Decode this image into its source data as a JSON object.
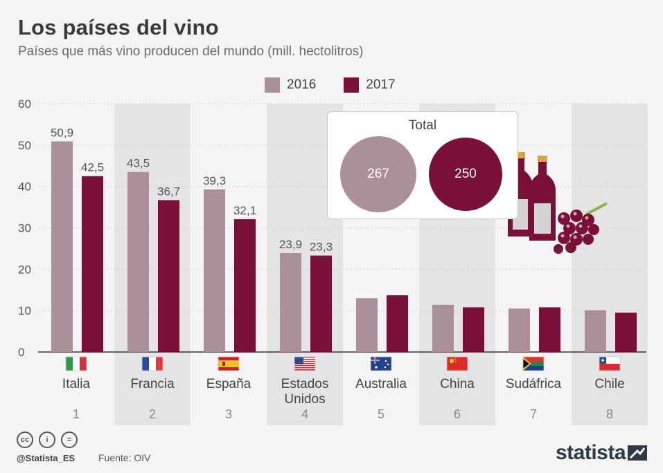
{
  "title": "Los países del vino",
  "subtitle": "Países que más vino producen del mundo (mill. hectolitros)",
  "legend": [
    {
      "label": "2016",
      "color": "#ab909a"
    },
    {
      "label": "2017",
      "color": "#7a0f37"
    }
  ],
  "chart_data": {
    "type": "bar",
    "title": "Los países del vino",
    "subtitle": "Países que más vino producen del mundo (mill. hectolitros)",
    "categories": [
      "Italia",
      "Francia",
      "España",
      "Estados Unidos",
      "Australia",
      "China",
      "Sudáfrica",
      "Chile"
    ],
    "category_lines": [
      [
        "Italia"
      ],
      [
        "Francia"
      ],
      [
        "España"
      ],
      [
        "Estados",
        "Unidos"
      ],
      [
        "Australia"
      ],
      [
        "China"
      ],
      [
        "Sudáfrica"
      ],
      [
        "Chile"
      ]
    ],
    "ranks": [
      "1",
      "2",
      "3",
      "4",
      "5",
      "6",
      "7",
      "8"
    ],
    "flags": [
      "italy-flag",
      "france-flag",
      "spain-flag",
      "usa-flag",
      "australia-flag",
      "china-flag",
      "south-africa-flag",
      "chile-flag"
    ],
    "series": [
      {
        "name": "2016",
        "color": "#ab909a",
        "values": [
          50.9,
          43.5,
          39.3,
          23.9,
          13.0,
          11.4,
          10.5,
          10.1
        ],
        "labels": [
          "50,9",
          "43,5",
          "39,3",
          "23,9",
          null,
          null,
          null,
          null
        ]
      },
      {
        "name": "2017",
        "color": "#7a0f37",
        "values": [
          42.5,
          36.7,
          32.1,
          23.3,
          13.7,
          10.8,
          10.8,
          9.5
        ],
        "labels": [
          "42,5",
          "36,7",
          "32,1",
          "23,3",
          null,
          null,
          null,
          null
        ]
      }
    ],
    "y_ticks": [
      0,
      10,
      20,
      30,
      40,
      50,
      60
    ],
    "ylim": [
      0,
      60
    ],
    "xlabel": "",
    "ylabel": "",
    "grid": true,
    "legend_position": "top-center"
  },
  "total_box": {
    "title": "Total",
    "values": [
      {
        "value": "267",
        "color": "#ab909a"
      },
      {
        "value": "250",
        "color": "#7a0f37"
      }
    ]
  },
  "footer": {
    "license_icons": [
      "cc-icon",
      "by-icon",
      "nd-icon"
    ],
    "license_glyphs": [
      "cc",
      "i",
      "="
    ],
    "handle": "@Statista_ES",
    "source": "Fuente: OIV",
    "brand": "statista"
  },
  "colors": {
    "background": "#f4f4f4",
    "band": "#e4e4e4",
    "grid": "#d2d2d2"
  }
}
